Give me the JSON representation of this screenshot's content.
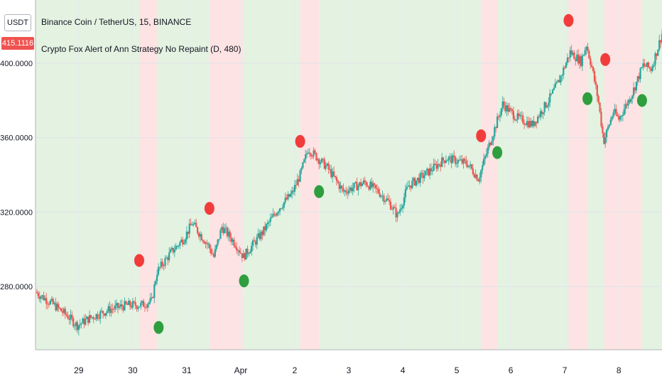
{
  "header": {
    "symbol_line": "Binance Coin / TetherUS, 15, BINANCE",
    "indicator_line": "Crypto Fox Alert of Ann Strategy No Repaint (D, 480)"
  },
  "unit_label": "USDT",
  "last_price": "415.1116",
  "colors": {
    "up_candle": "#26a69a",
    "down_candle": "#ef5350",
    "long_bg": "#e3f2e1",
    "short_bg": "#fde3e3",
    "buy_marker": "#2e9e3e",
    "sell_marker": "#f23c3c"
  },
  "chart_data": {
    "type": "candlestick",
    "y_tick_labels": [
      "280.0000",
      "320.0000",
      "360.0000",
      "400.0000"
    ],
    "y_ticks": [
      280,
      320,
      360,
      400
    ],
    "ylim": [
      246,
      434
    ],
    "x_tick_labels": [
      "29",
      "30",
      "31",
      "Apr",
      "2",
      "3",
      "4",
      "5",
      "6",
      "7",
      "8"
    ],
    "x_ticks": [
      29,
      30,
      31,
      32,
      33,
      34,
      35,
      36,
      37,
      38,
      39
    ],
    "xlim": [
      28.2,
      39.8
    ],
    "grid": true,
    "price_path": [
      [
        28.2,
        277
      ],
      [
        28.5,
        271
      ],
      [
        28.8,
        264
      ],
      [
        28.97,
        259
      ],
      [
        29.2,
        263
      ],
      [
        29.6,
        268
      ],
      [
        29.9,
        270
      ],
      [
        30.15,
        270
      ],
      [
        30.35,
        272
      ],
      [
        30.45,
        288
      ],
      [
        30.7,
        298
      ],
      [
        30.95,
        306
      ],
      [
        31.1,
        314
      ],
      [
        31.4,
        302
      ],
      [
        31.5,
        296
      ],
      [
        31.65,
        312
      ],
      [
        31.9,
        303
      ],
      [
        32.05,
        296
      ],
      [
        32.4,
        309
      ],
      [
        32.7,
        322
      ],
      [
        32.95,
        330
      ],
      [
        33.1,
        340
      ],
      [
        33.25,
        354
      ],
      [
        33.6,
        344
      ],
      [
        33.9,
        331
      ],
      [
        34.3,
        336
      ],
      [
        34.55,
        331
      ],
      [
        34.75,
        325
      ],
      [
        34.9,
        318
      ],
      [
        35.1,
        334
      ],
      [
        35.4,
        340
      ],
      [
        35.8,
        349
      ],
      [
        36.2,
        346
      ],
      [
        36.4,
        338
      ],
      [
        36.6,
        356
      ],
      [
        36.85,
        378
      ],
      [
        37.1,
        371
      ],
      [
        37.4,
        367
      ],
      [
        37.7,
        380
      ],
      [
        37.9,
        391
      ],
      [
        38.1,
        406
      ],
      [
        38.3,
        401
      ],
      [
        38.4,
        410
      ],
      [
        38.5,
        398
      ],
      [
        38.62,
        380
      ],
      [
        38.72,
        358
      ],
      [
        38.9,
        374
      ],
      [
        39.0,
        370
      ],
      [
        39.25,
        384
      ],
      [
        39.45,
        399
      ],
      [
        39.6,
        397
      ],
      [
        39.72,
        408
      ],
      [
        39.8,
        416
      ]
    ],
    "background_zones": [
      {
        "signal": "long",
        "start": 28.2,
        "end": 30.12
      },
      {
        "signal": "short",
        "start": 30.12,
        "end": 30.45
      },
      {
        "signal": "long",
        "start": 30.45,
        "end": 31.42
      },
      {
        "signal": "short",
        "start": 31.42,
        "end": 32.05
      },
      {
        "signal": "long",
        "start": 32.05,
        "end": 33.1
      },
      {
        "signal": "short",
        "start": 33.1,
        "end": 33.45
      },
      {
        "signal": "long",
        "start": 33.45,
        "end": 36.45
      },
      {
        "signal": "short",
        "start": 36.45,
        "end": 36.75
      },
      {
        "signal": "long",
        "start": 36.75,
        "end": 38.07
      },
      {
        "signal": "short",
        "start": 38.07,
        "end": 38.43
      },
      {
        "signal": "long",
        "start": 38.43,
        "end": 38.73
      },
      {
        "signal": "short",
        "start": 38.73,
        "end": 39.43
      },
      {
        "signal": "long",
        "start": 39.43,
        "end": 39.8
      }
    ],
    "signals": [
      {
        "type": "sell",
        "x": 30.12,
        "y": 294
      },
      {
        "type": "buy",
        "x": 30.48,
        "y": 258
      },
      {
        "type": "sell",
        "x": 31.42,
        "y": 322
      },
      {
        "type": "buy",
        "x": 32.06,
        "y": 283
      },
      {
        "type": "sell",
        "x": 33.1,
        "y": 358
      },
      {
        "type": "buy",
        "x": 33.45,
        "y": 331
      },
      {
        "type": "sell",
        "x": 36.45,
        "y": 361
      },
      {
        "type": "buy",
        "x": 36.75,
        "y": 352
      },
      {
        "type": "sell",
        "x": 38.07,
        "y": 423
      },
      {
        "type": "buy",
        "x": 38.42,
        "y": 381
      },
      {
        "type": "sell",
        "x": 38.75,
        "y": 402
      },
      {
        "type": "buy",
        "x": 39.43,
        "y": 380
      }
    ]
  }
}
